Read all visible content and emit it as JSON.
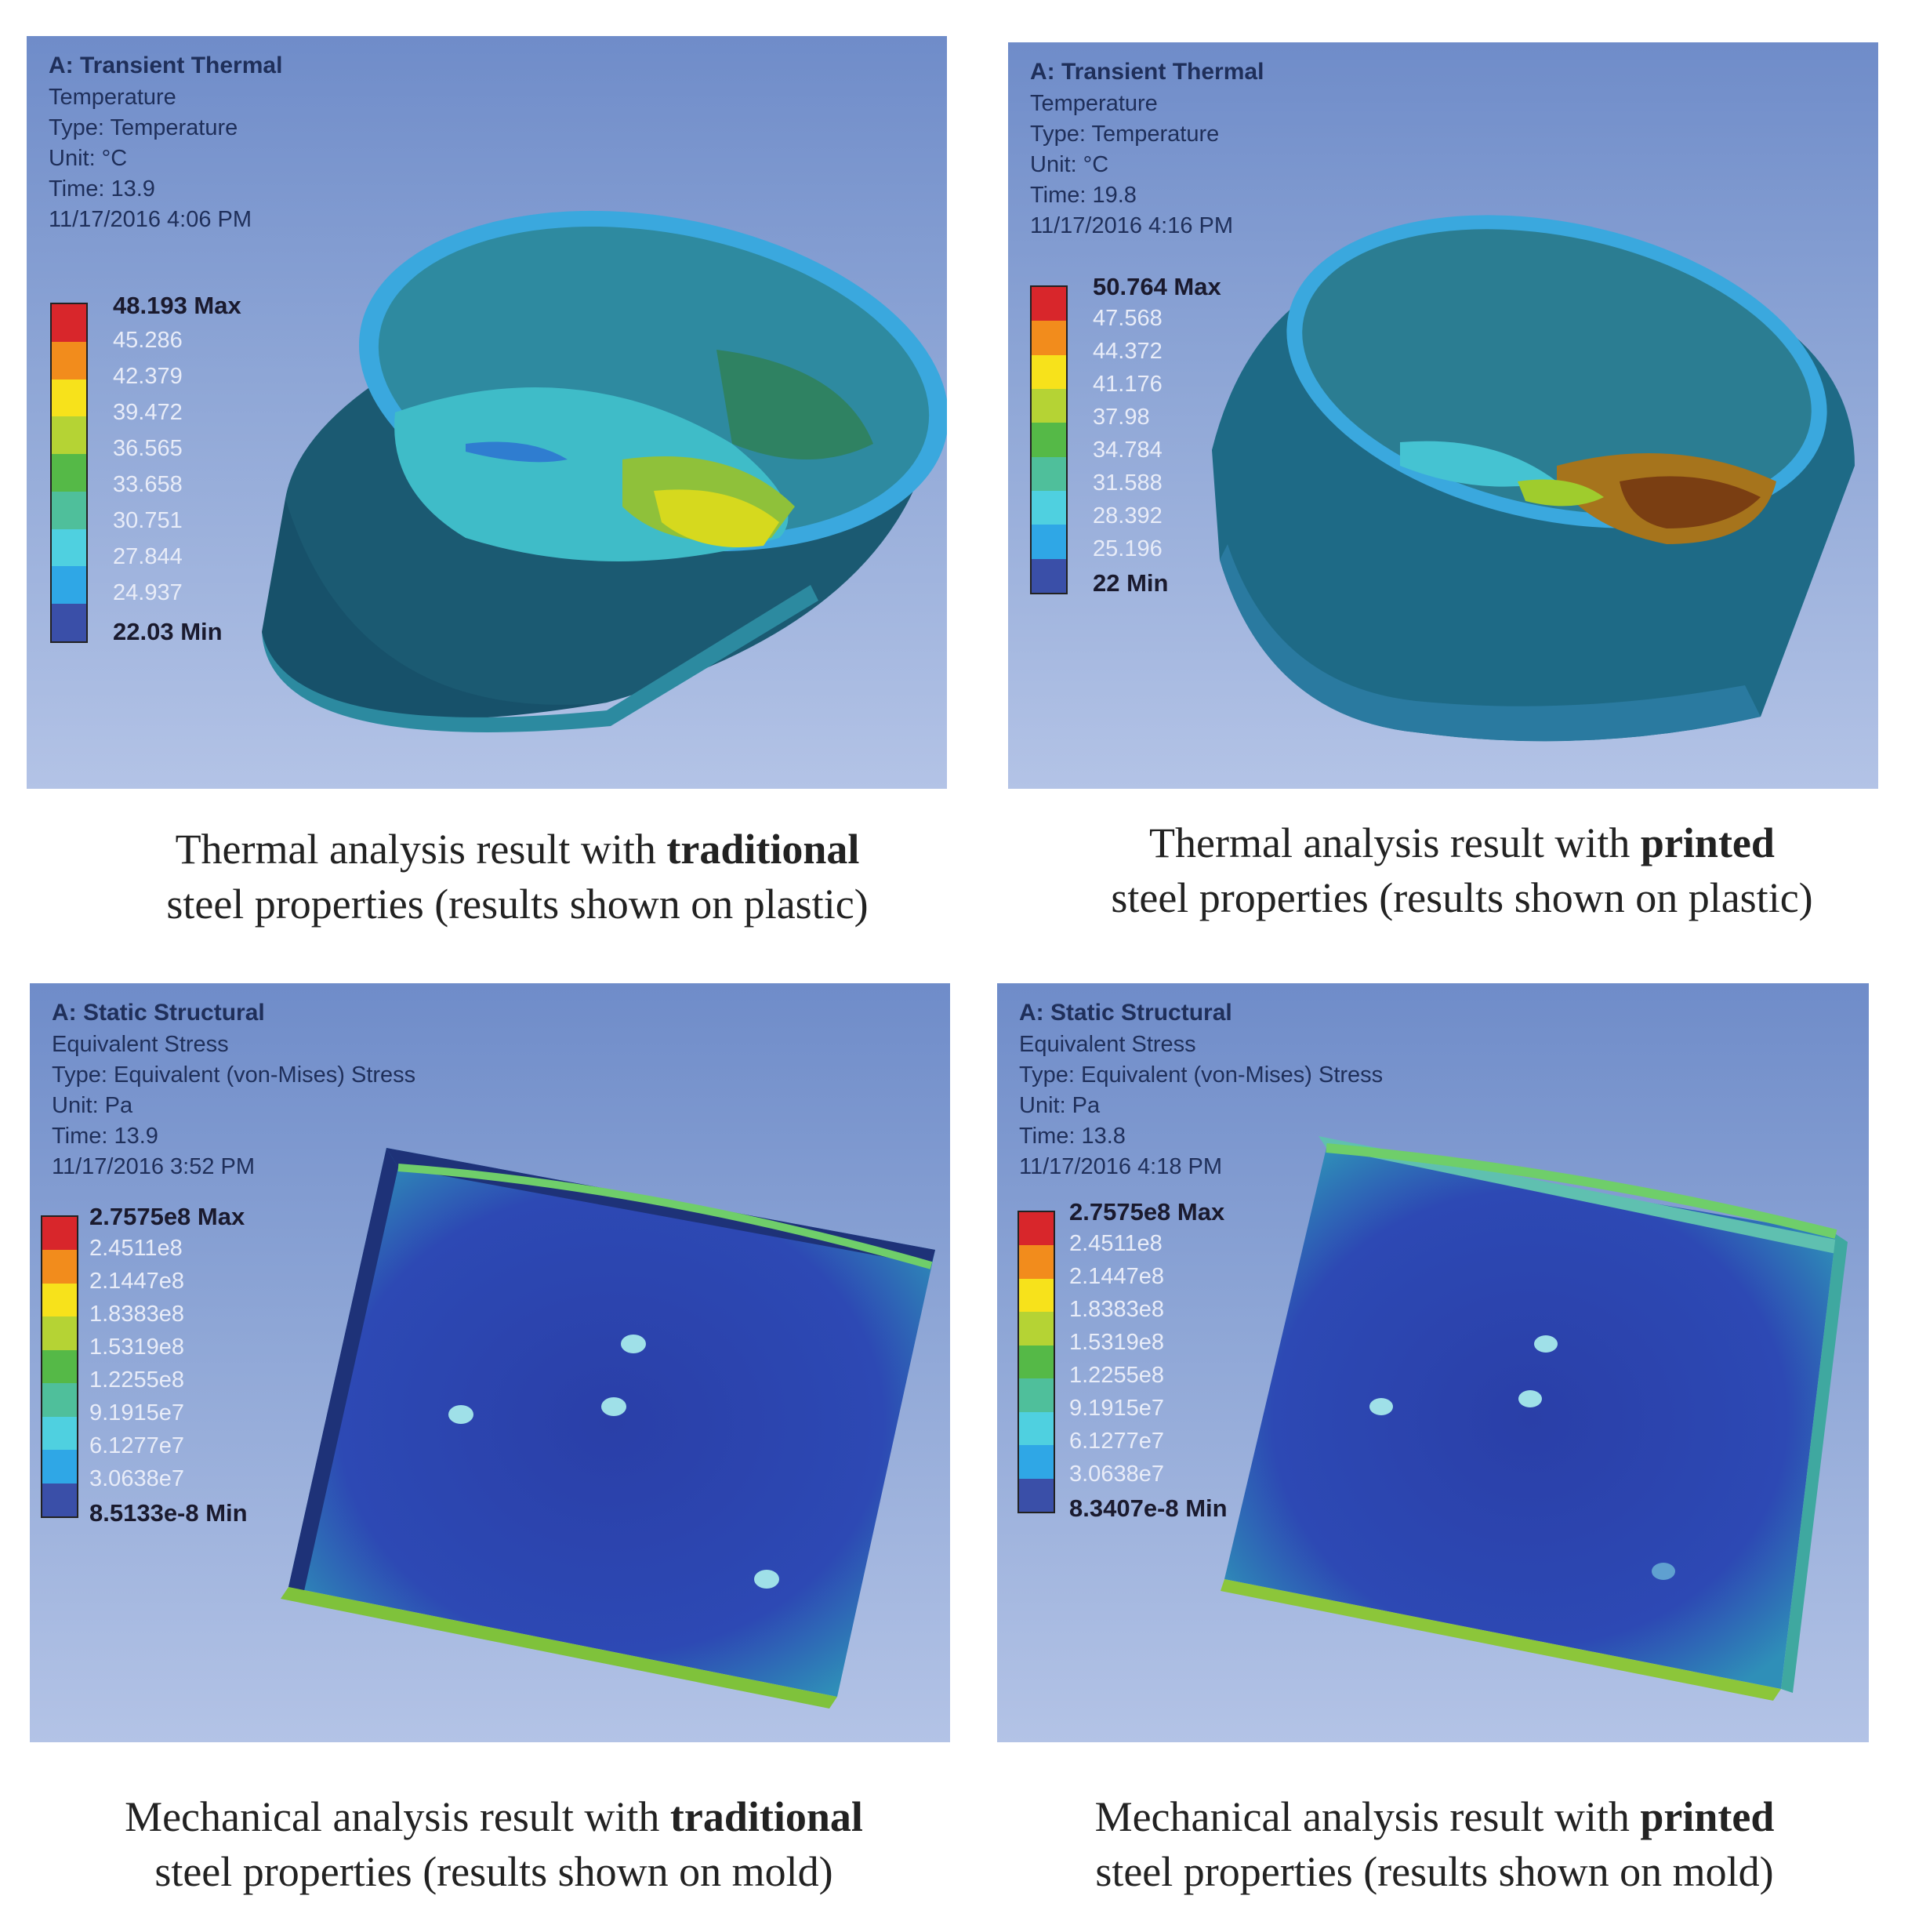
{
  "legend_colors": [
    "#d8262b",
    "#f28c1c",
    "#f7e21b",
    "#b5d334",
    "#55b947",
    "#4fbf9b",
    "#4fd0e0",
    "#2fa7e6",
    "#3a4fa8"
  ],
  "panels": [
    {
      "header": [
        "A: Transient Thermal",
        "Temperature",
        "Type: Temperature",
        "Unit: °C",
        "Time: 13.9",
        "11/17/2016 4:06 PM"
      ],
      "max": "48.193 Max",
      "ticks": [
        "45.286",
        "42.379",
        "39.472",
        "36.565",
        "33.658",
        "30.751",
        "27.844",
        "24.937"
      ],
      "min": "22.03 Min"
    },
    {
      "header": [
        "A: Transient Thermal",
        "Temperature",
        "Type: Temperature",
        "Unit: °C",
        "Time: 19.8",
        "11/17/2016 4:16 PM"
      ],
      "max": "50.764 Max",
      "ticks": [
        "47.568",
        "44.372",
        "41.176",
        "37.98",
        "34.784",
        "31.588",
        "28.392",
        "25.196"
      ],
      "min": "22 Min"
    },
    {
      "header": [
        "A: Static Structural",
        "Equivalent Stress",
        "Type: Equivalent (von-Mises) Stress",
        "Unit: Pa",
        "Time: 13.9",
        "11/17/2016 3:52 PM"
      ],
      "max": "2.7575e8 Max",
      "ticks": [
        "2.4511e8",
        "2.1447e8",
        "1.8383e8",
        "1.5319e8",
        "1.2255e8",
        "9.1915e7",
        "6.1277e7",
        "3.0638e7"
      ],
      "min": "8.5133e-8 Min"
    },
    {
      "header": [
        "A: Static Structural",
        "Equivalent Stress",
        "Type: Equivalent (von-Mises) Stress",
        "Unit: Pa",
        "Time: 13.8",
        "11/17/2016 4:18 PM"
      ],
      "max": "2.7575e8 Max",
      "ticks": [
        "2.4511e8",
        "2.1447e8",
        "1.8383e8",
        "1.5319e8",
        "1.2255e8",
        "9.1915e7",
        "6.1277e7",
        "3.0638e7"
      ],
      "min": "8.3407e-8 Min"
    }
  ],
  "captions": [
    {
      "pre": "Thermal analysis result with ",
      "bold": "traditional",
      "line2": "steel properties (results shown on plastic)"
    },
    {
      "pre": "Thermal analysis result with ",
      "bold": "printed",
      "line2": "steel properties (results shown on plastic)"
    },
    {
      "pre": "Mechanical analysis result with ",
      "bold": "traditional",
      "line2": "steel properties (results shown on mold)"
    },
    {
      "pre": "Mechanical analysis result with ",
      "bold": "printed",
      "line2": "steel properties (results shown on mold)"
    }
  ]
}
